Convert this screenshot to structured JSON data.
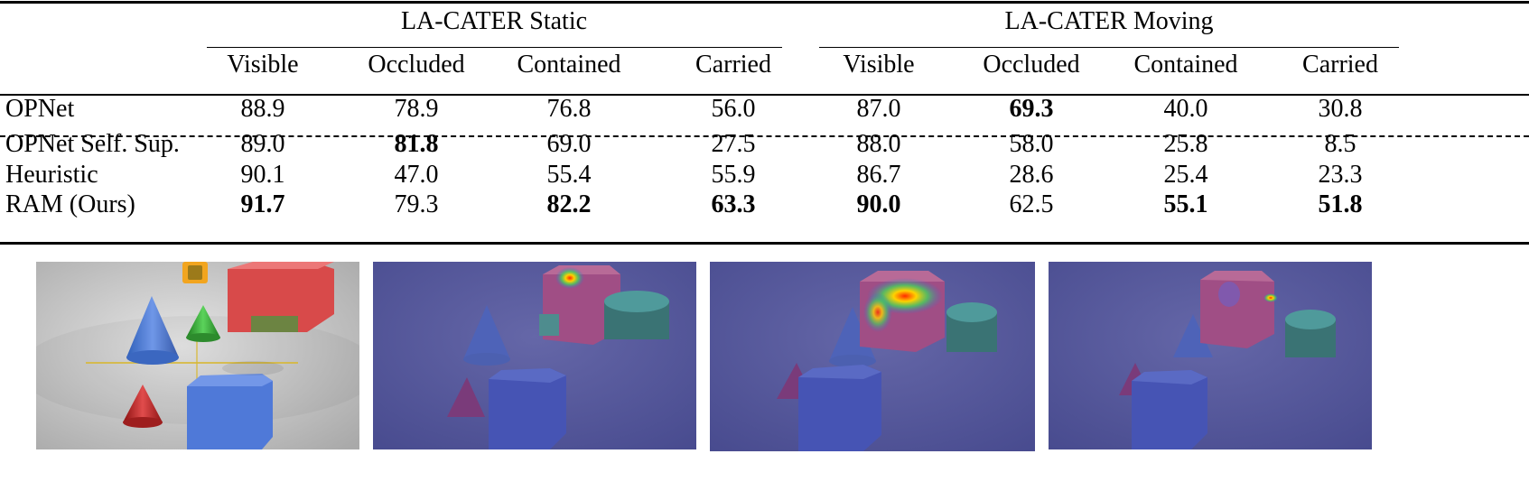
{
  "table": {
    "groups": [
      {
        "title": "LA-CATER Static",
        "columns": [
          "Visible",
          "Occluded",
          "Contained",
          "Carried"
        ]
      },
      {
        "title": "LA-CATER Moving",
        "columns": [
          "Visible",
          "Occluded",
          "Contained",
          "Carried"
        ]
      }
    ],
    "rows": [
      {
        "method": "OPNet",
        "values": [
          "88.9",
          "78.9",
          "76.8",
          "56.0",
          "87.0",
          "69.3",
          "40.0",
          "30.8"
        ],
        "bold": [
          false,
          false,
          false,
          false,
          false,
          true,
          false,
          false
        ]
      },
      {
        "method": "OPNet Self. Sup.",
        "values": [
          "89.0",
          "81.8",
          "69.0",
          "27.5",
          "88.0",
          "58.0",
          "25.8",
          "8.5"
        ],
        "bold": [
          false,
          true,
          false,
          false,
          false,
          false,
          false,
          false
        ]
      },
      {
        "method": "Heuristic",
        "values": [
          "90.1",
          "47.0",
          "55.4",
          "55.9",
          "86.7",
          "28.6",
          "25.4",
          "23.3"
        ],
        "bold": [
          false,
          false,
          false,
          false,
          false,
          false,
          false,
          false
        ]
      },
      {
        "method": "RAM (Ours)",
        "values": [
          "91.7",
          "79.3",
          "82.2",
          "63.3",
          "90.0",
          "62.5",
          "55.1",
          "51.8"
        ],
        "bold": [
          true,
          false,
          true,
          true,
          true,
          false,
          true,
          true
        ]
      }
    ]
  },
  "images": [
    {
      "name": "scene-frame",
      "tint": "none"
    },
    {
      "name": "attention-map-1",
      "tint": "blue",
      "heat": "cube-top-corner"
    },
    {
      "name": "attention-map-2",
      "tint": "blue",
      "heat": "cube-top-wide"
    },
    {
      "name": "attention-map-3",
      "tint": "blue",
      "heat": "cube-top-edge"
    }
  ]
}
